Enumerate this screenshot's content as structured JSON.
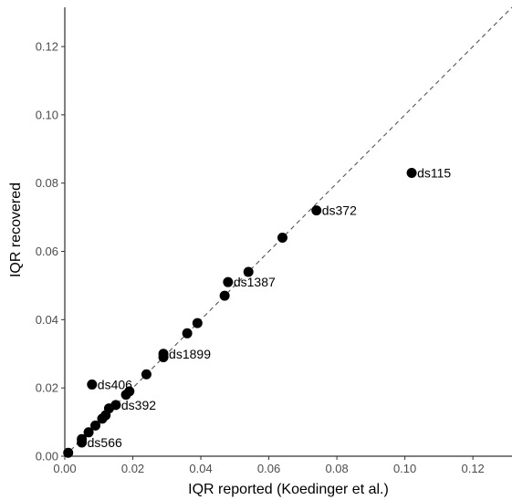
{
  "chart_data": {
    "type": "scatter",
    "xlabel": "IQR reported (Koedinger et al.)",
    "ylabel": "IQR recovered",
    "xlim": [
      0,
      0.1315
    ],
    "ylim": [
      0,
      0.1315
    ],
    "x_ticks": [
      "0.00",
      "0.02",
      "0.04",
      "0.06",
      "0.08",
      "0.10",
      "0.12"
    ],
    "y_ticks": [
      "0.00",
      "0.02",
      "0.04",
      "0.06",
      "0.08",
      "0.10",
      "0.12"
    ],
    "x_tick_values": [
      0,
      0.02,
      0.04,
      0.06,
      0.08,
      0.1,
      0.12
    ],
    "y_tick_values": [
      0,
      0.02,
      0.04,
      0.06,
      0.08,
      0.1,
      0.12
    ],
    "reference_line": "y = x (dashed)",
    "grid": false,
    "points": [
      {
        "x": 0.001,
        "y": 0.001,
        "label": ""
      },
      {
        "x": 0.005,
        "y": 0.004,
        "label": "ds566"
      },
      {
        "x": 0.005,
        "y": 0.005,
        "label": ""
      },
      {
        "x": 0.007,
        "y": 0.007,
        "label": ""
      },
      {
        "x": 0.008,
        "y": 0.021,
        "label": "ds406"
      },
      {
        "x": 0.009,
        "y": 0.009,
        "label": ""
      },
      {
        "x": 0.011,
        "y": 0.011,
        "label": ""
      },
      {
        "x": 0.012,
        "y": 0.012,
        "label": ""
      },
      {
        "x": 0.013,
        "y": 0.014,
        "label": ""
      },
      {
        "x": 0.015,
        "y": 0.015,
        "label": "ds392"
      },
      {
        "x": 0.018,
        "y": 0.018,
        "label": ""
      },
      {
        "x": 0.019,
        "y": 0.019,
        "label": ""
      },
      {
        "x": 0.024,
        "y": 0.024,
        "label": ""
      },
      {
        "x": 0.029,
        "y": 0.029,
        "label": ""
      },
      {
        "x": 0.029,
        "y": 0.03,
        "label": "ds1899"
      },
      {
        "x": 0.036,
        "y": 0.036,
        "label": ""
      },
      {
        "x": 0.039,
        "y": 0.039,
        "label": ""
      },
      {
        "x": 0.047,
        "y": 0.047,
        "label": ""
      },
      {
        "x": 0.048,
        "y": 0.051,
        "label": "ds1387"
      },
      {
        "x": 0.054,
        "y": 0.054,
        "label": ""
      },
      {
        "x": 0.064,
        "y": 0.064,
        "label": ""
      },
      {
        "x": 0.074,
        "y": 0.072,
        "label": "ds372"
      },
      {
        "x": 0.102,
        "y": 0.083,
        "label": "ds115"
      }
    ]
  }
}
